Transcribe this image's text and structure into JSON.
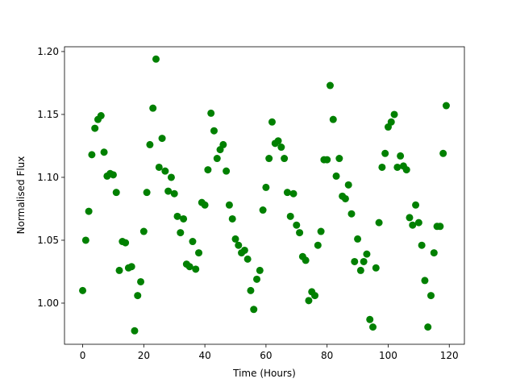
{
  "chart_data": {
    "type": "scatter",
    "xlabel": "Time (Hours)",
    "ylabel": "Normalised Flux",
    "color": "#008000",
    "xlim": [
      -5.95,
      124.95
    ],
    "xticks": [
      0,
      20,
      40,
      60,
      80,
      100,
      120
    ],
    "ylim": [
      0.9673,
      1.2038
    ],
    "yticks": [
      {
        "value": 1,
        "label": "1.00"
      },
      1.05,
      {
        "value": 1.1,
        "label": "1.10"
      },
      1.15,
      {
        "value": 1.2,
        "label": "1.20"
      }
    ],
    "x": [
      0,
      1,
      2,
      3,
      4,
      5,
      6,
      7,
      8,
      9,
      10,
      11,
      12,
      13,
      14,
      15,
      16,
      17,
      18,
      19,
      20,
      21,
      22,
      23,
      24,
      25,
      26,
      27,
      28,
      29,
      30,
      31,
      32,
      33,
      34,
      35,
      36,
      37,
      38,
      39,
      40,
      41,
      42,
      43,
      44,
      45,
      46,
      47,
      48,
      49,
      50,
      51,
      52,
      53,
      54,
      55,
      56,
      57,
      58,
      59,
      60,
      61,
      62,
      63,
      64,
      65,
      66,
      67,
      68,
      69,
      70,
      71,
      72,
      73,
      74,
      75,
      76,
      77,
      78,
      79,
      80,
      81,
      82,
      83,
      84,
      85,
      86,
      87,
      88,
      89,
      90,
      91,
      92,
      93,
      94,
      95,
      96,
      97,
      98,
      99,
      100,
      101,
      102,
      103,
      104,
      105,
      106,
      107,
      108,
      109,
      110,
      111,
      112,
      113,
      114,
      115,
      116,
      117,
      118,
      119
    ],
    "values": [
      1.01,
      1.05,
      1.073,
      1.118,
      1.139,
      1.146,
      1.149,
      1.12,
      1.101,
      1.103,
      1.102,
      1.088,
      1.026,
      1.049,
      1.048,
      1.028,
      1.029,
      0.978,
      1.006,
      1.017,
      1.057,
      1.088,
      1.126,
      1.155,
      1.194,
      1.108,
      1.131,
      1.105,
      1.089,
      1.1,
      1.087,
      1.069,
      1.056,
      1.067,
      1.031,
      1.029,
      1.049,
      1.027,
      1.04,
      1.08,
      1.078,
      1.106,
      1.151,
      1.137,
      1.115,
      1.122,
      1.126,
      1.105,
      1.078,
      1.067,
      1.051,
      1.046,
      1.04,
      1.042,
      1.035,
      1.01,
      0.995,
      1.019,
      1.026,
      1.074,
      1.092,
      1.115,
      1.144,
      1.127,
      1.129,
      1.124,
      1.115,
      1.088,
      1.069,
      1.087,
      1.062,
      1.056,
      1.037,
      1.034,
      1.002,
      1.009,
      1.006,
      1.046,
      1.057,
      1.114,
      1.114,
      1.173,
      1.146,
      1.101,
      1.115,
      1.085,
      1.083,
      1.094,
      1.071,
      1.033,
      1.051,
      1.026,
      1.033,
      1.039,
      0.987,
      0.981,
      1.028,
      1.064,
      1.108,
      1.119,
      1.14,
      1.144,
      1.15,
      1.108,
      1.117,
      1.109,
      1.106,
      1.068,
      1.062,
      1.078,
      1.064,
      1.046,
      1.018,
      0.981,
      1.006,
      1.04,
      1.061,
      1.061,
      1.119,
      1.157
    ]
  }
}
